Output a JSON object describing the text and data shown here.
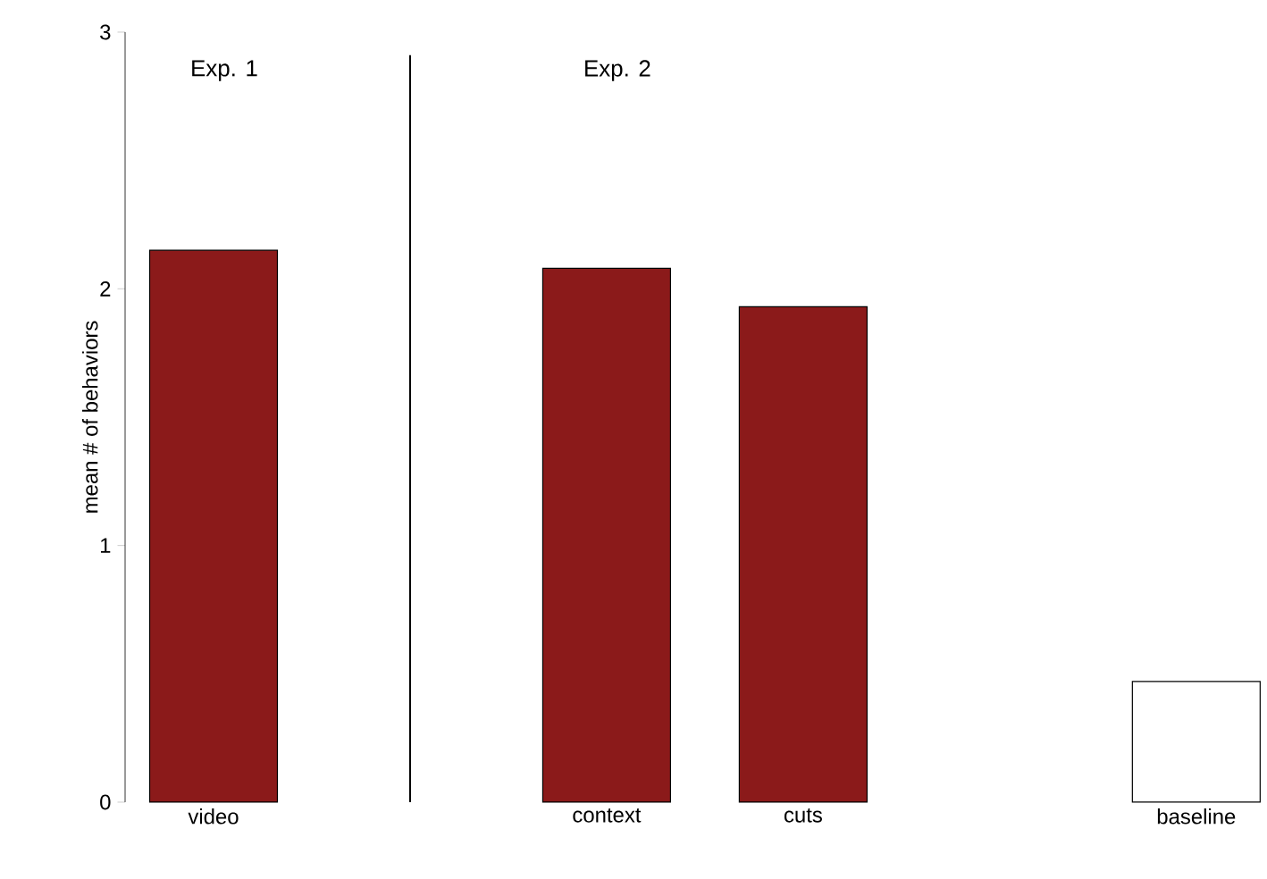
{
  "chart_data": {
    "type": "bar",
    "ylabel": "mean # of behaviors",
    "categories": [
      "video",
      null,
      "context",
      "cuts",
      null,
      "baseline"
    ],
    "values": [
      2.15,
      null,
      2.08,
      1.93,
      null,
      0.47
    ],
    "colors": [
      "#8b1a1a",
      "#8b1a1a",
      "#8b1a1a",
      "#8b1a1a",
      "#8b1a1a",
      "#ffffff"
    ],
    "ylim": [
      0,
      3
    ],
    "yticks": [
      0,
      1,
      2,
      3
    ],
    "annotations": [
      "Exp. 1",
      "Exp. 2"
    ]
  }
}
